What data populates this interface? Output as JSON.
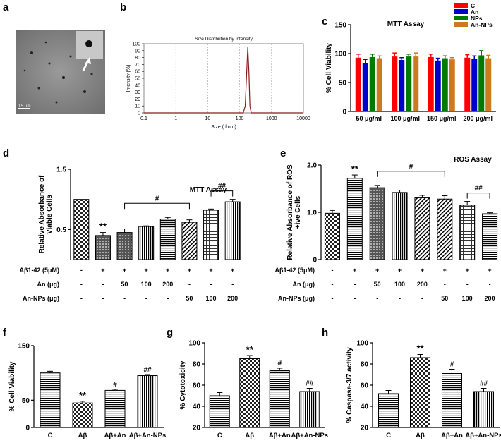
{
  "panels": {
    "a": {
      "label": "a",
      "scale_bar_label": "0.5 μm"
    },
    "b": {
      "label": "b"
    },
    "c": {
      "label": "c"
    },
    "d": {
      "label": "d"
    },
    "e": {
      "label": "e"
    },
    "f": {
      "label": "f"
    },
    "g": {
      "label": "g"
    },
    "h": {
      "label": "h"
    }
  },
  "chart_data": [
    {
      "id": "b",
      "type": "line",
      "title": "Size Distribution by Intensity",
      "xlabel": "Size (d.nm)",
      "ylabel": "Intensity (%)",
      "xscale": "log",
      "xlim": [
        0.1,
        10000
      ],
      "xticks": [
        0.1,
        1,
        10,
        100,
        1000,
        10000
      ],
      "xtick_labels": [
        "0.1",
        "1",
        "10",
        "100",
        "1000",
        "10000"
      ],
      "ylim": [
        0,
        100
      ],
      "yticks": [
        0,
        10,
        20,
        30,
        40,
        50,
        60,
        70,
        80,
        90,
        100
      ],
      "grid": true,
      "series": [
        {
          "name": "Intensity",
          "color": "#8b1a1a",
          "x": [
            0.1,
            100,
            130,
            150,
            165,
            180,
            195,
            210,
            230,
            10000
          ],
          "y": [
            0,
            0,
            0,
            10,
            55,
            95,
            60,
            10,
            0,
            0
          ]
        }
      ]
    },
    {
      "id": "c",
      "type": "bar",
      "title": "MTT Assay",
      "ylabel": "% Cell Viability",
      "xlabel": "",
      "ylim": [
        0,
        150
      ],
      "yticks": [
        0,
        50,
        100,
        150
      ],
      "categories": [
        "50 μg/ml",
        "100 μg/ml",
        "150 μg/ml",
        "200 μg/ml"
      ],
      "legend_position": "top-right",
      "series": [
        {
          "name": "C",
          "color": "#ff0000",
          "values": [
            93,
            95,
            94,
            93
          ],
          "errors": [
            6,
            6,
            5,
            5
          ]
        },
        {
          "name": "An",
          "color": "#0000cc",
          "values": [
            84,
            89,
            88,
            91
          ],
          "errors": [
            6,
            4,
            4,
            5
          ]
        },
        {
          "name": "NPs",
          "color": "#007a00",
          "values": [
            94,
            95,
            92,
            97
          ],
          "errors": [
            5,
            4,
            4,
            8
          ]
        },
        {
          "name": "An-NPs",
          "color": "#cc7a1f",
          "values": [
            92,
            95,
            90,
            92
          ],
          "errors": [
            4,
            6,
            3,
            5
          ]
        }
      ]
    },
    {
      "id": "d",
      "type": "bar",
      "title": "MTT Assay",
      "ylabel": "Relative Absorbance of Viable Cells",
      "ylim": [
        0,
        1.5
      ],
      "yticks": [
        0.5,
        1.5
      ],
      "ytick_labels": [
        "0.5",
        "1.5"
      ],
      "values": [
        1.0,
        0.4,
        0.45,
        0.55,
        0.67,
        0.62,
        0.82,
        0.96
      ],
      "errors": [
        0,
        0.05,
        0.06,
        0.01,
        0.03,
        0.04,
        0.02,
        0.04
      ],
      "patterns": [
        "check",
        "dot",
        "dot",
        "vert",
        "horiz",
        "diag",
        "grid",
        "vert"
      ],
      "annotations": [
        {
          "bar": 1,
          "text": "**"
        }
      ],
      "brackets": [
        {
          "from": 2,
          "to": 5,
          "text": "#"
        },
        {
          "from": 6,
          "to": 7,
          "text": "##"
        }
      ],
      "conditions": [
        {
          "label": "Aβ1-42 (5μM)",
          "values": [
            "-",
            "+",
            "+",
            "+",
            "+",
            "+",
            "+",
            "+"
          ]
        },
        {
          "label": "An (μg)",
          "values": [
            "-",
            "-",
            "50",
            "100",
            "200",
            "-",
            "-",
            "-"
          ]
        },
        {
          "label": "An-NPs (μg)",
          "values": [
            "-",
            "-",
            "-",
            "-",
            "-",
            "50",
            "100",
            "200"
          ]
        }
      ]
    },
    {
      "id": "e",
      "type": "bar",
      "title": "ROS Assay",
      "ylabel": "Relative Absorbance of ROS +ive Cells",
      "ylim": [
        0,
        2.0
      ],
      "yticks": [
        0,
        1.0,
        2.0
      ],
      "ytick_labels": [
        "0",
        "1.0",
        "2.0"
      ],
      "values": [
        0.98,
        1.72,
        1.52,
        1.42,
        1.32,
        1.28,
        1.15,
        0.97
      ],
      "errors": [
        0.06,
        0.07,
        0.05,
        0.05,
        0.04,
        0.07,
        0.08,
        0.02
      ],
      "patterns": [
        "check",
        "horiz",
        "dot",
        "vert",
        "diag",
        "diag",
        "grid",
        "horiz"
      ],
      "annotations": [
        {
          "bar": 1,
          "text": "**"
        }
      ],
      "brackets": [
        {
          "from": 2,
          "to": 5,
          "text": "#"
        },
        {
          "from": 6,
          "to": 7,
          "text": "##"
        }
      ],
      "conditions": [
        {
          "label": "Aβ1-42 (5μM)",
          "values": [
            "-",
            "+",
            "+",
            "+",
            "+",
            "+",
            "+",
            "+"
          ]
        },
        {
          "label": "An (μg)",
          "values": [
            "-",
            "-",
            "50",
            "100",
            "200",
            "-",
            "-",
            "-"
          ]
        },
        {
          "label": "An-NPs (μg)",
          "values": [
            "-",
            "-",
            "-",
            "-",
            "-",
            "50",
            "100",
            "200"
          ]
        }
      ]
    },
    {
      "id": "f",
      "type": "bar",
      "ylabel": "% Cell Viability",
      "ylim": [
        0,
        150
      ],
      "yticks": [
        0,
        50,
        150
      ],
      "ytick_labels": [
        "0",
        "50",
        "150"
      ],
      "categories": [
        "C",
        "Aβ",
        "Aβ+An",
        "Aβ+An-NPs"
      ],
      "values": [
        100,
        45,
        68,
        95
      ],
      "errors": [
        3,
        3,
        2,
        2
      ],
      "patterns": [
        "horiz",
        "check",
        "horiz",
        "vert"
      ],
      "annotations": [
        {
          "bar": 1,
          "text": "**"
        },
        {
          "bar": 2,
          "text": "#"
        },
        {
          "bar": 3,
          "text": "##"
        }
      ]
    },
    {
      "id": "g",
      "type": "bar",
      "ylabel": "% Cytotoxicity",
      "ylim": [
        20,
        100
      ],
      "yticks": [
        20,
        40,
        60,
        80,
        100
      ],
      "categories": [
        "C",
        "Aβ",
        "Aβ+An",
        "Aβ+An-NPs"
      ],
      "values": [
        50,
        85,
        74,
        54
      ],
      "errors": [
        3,
        3,
        2,
        3
      ],
      "patterns": [
        "horiz",
        "check",
        "horiz",
        "vert"
      ],
      "annotations": [
        {
          "bar": 1,
          "text": "**"
        },
        {
          "bar": 2,
          "text": "#"
        },
        {
          "bar": 3,
          "text": "##"
        }
      ]
    },
    {
      "id": "h",
      "type": "bar",
      "ylabel": "% Caspase-3/7 activity",
      "ylim": [
        20,
        100
      ],
      "yticks": [
        20,
        40,
        60,
        80,
        100
      ],
      "categories": [
        "C",
        "Aβ",
        "Aβ+An",
        "Aβ+An-NPs"
      ],
      "values": [
        52,
        86,
        71,
        54
      ],
      "errors": [
        3,
        3,
        4,
        3
      ],
      "patterns": [
        "horiz",
        "check",
        "horiz",
        "vert"
      ],
      "annotations": [
        {
          "bar": 1,
          "text": "**"
        },
        {
          "bar": 2,
          "text": "#"
        },
        {
          "bar": 3,
          "text": "##"
        }
      ]
    }
  ]
}
